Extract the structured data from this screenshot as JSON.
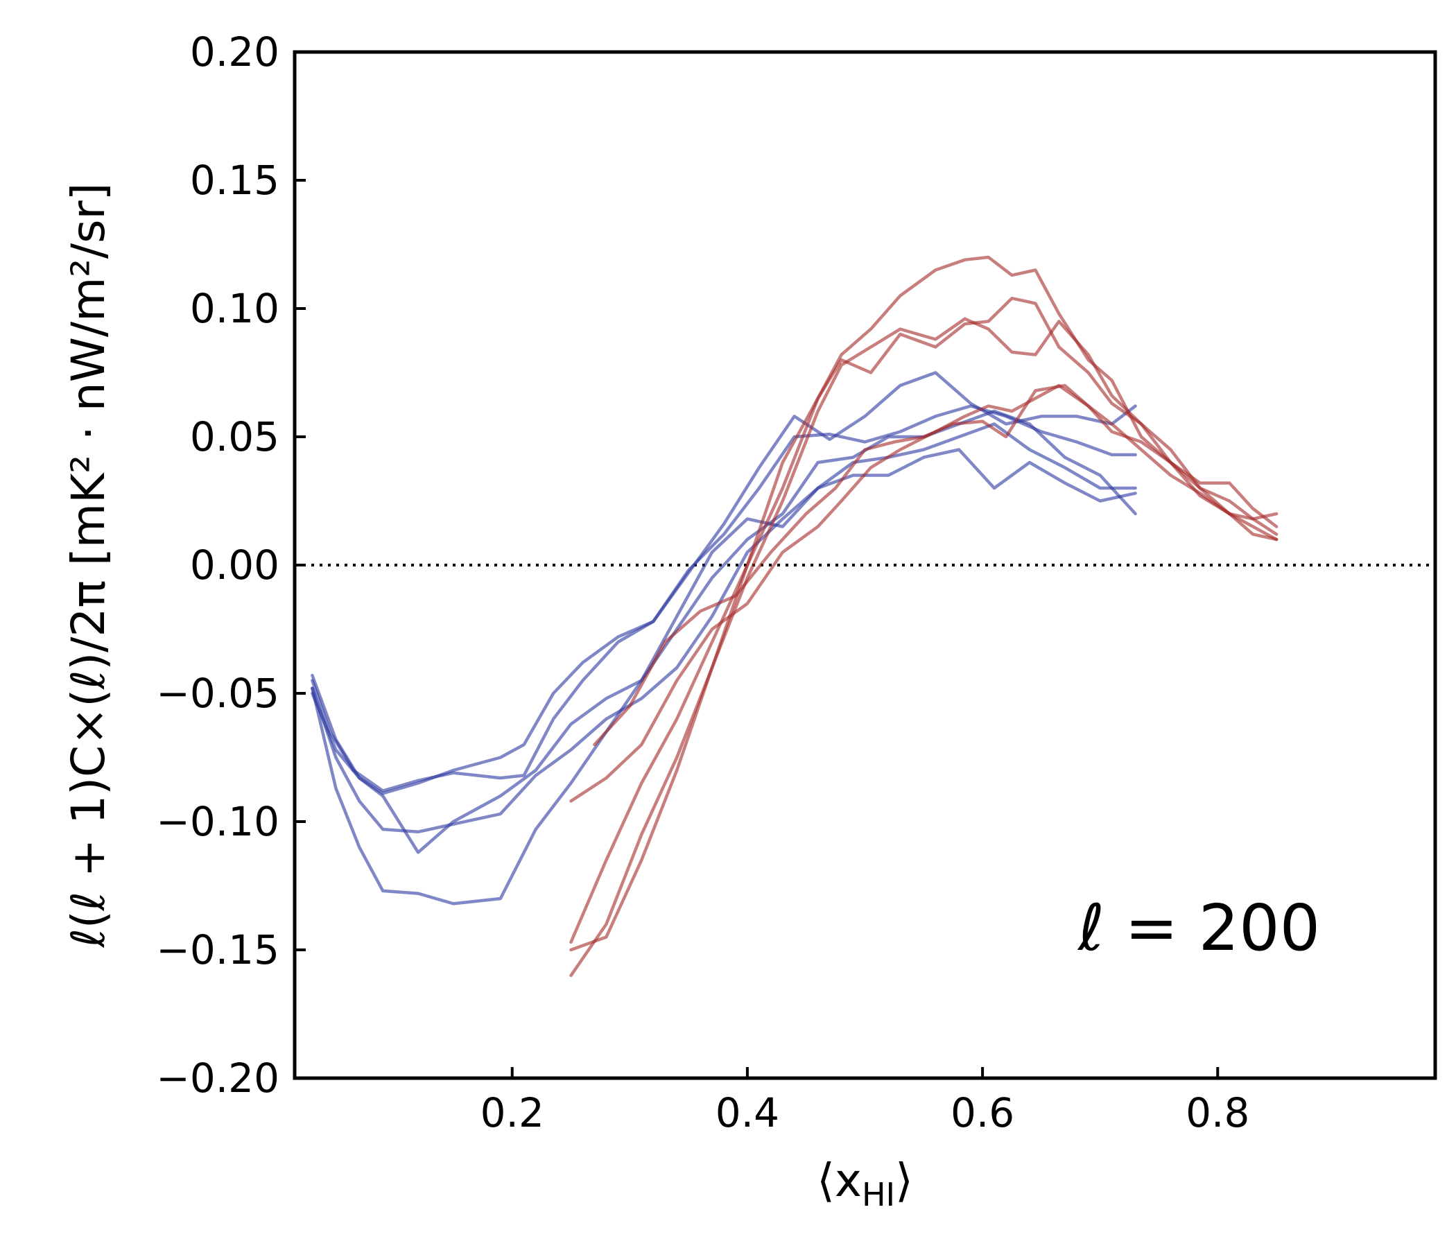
{
  "chart_data": {
    "type": "line",
    "xlabel_main": "⟨x",
    "xlabel_sub": "HI",
    "xlabel_end": "⟩",
    "ylabel": "ℓ(ℓ + 1)C×(ℓ)/2π [mK² · nW/m²/sr]",
    "xlim": [
      0.015,
      0.985
    ],
    "ylim": [
      -0.2,
      0.2
    ],
    "xticks": [
      0.2,
      0.4,
      0.6,
      0.8
    ],
    "xtick_labels": [
      "0.2",
      "0.4",
      "0.6",
      "0.8"
    ],
    "yticks": [
      -0.2,
      -0.15,
      -0.1,
      -0.05,
      0.0,
      0.05,
      0.1,
      0.15,
      0.2
    ],
    "ytick_labels": [
      "−0.20",
      "−0.15",
      "−0.10",
      "−0.05",
      "0.00",
      "0.05",
      "0.10",
      "0.15",
      "0.20"
    ],
    "reference_line": {
      "y": 0.0,
      "style": "dotted"
    },
    "annotation": "ℓ = 200",
    "colors": {
      "blue": "#2b37a0",
      "red": "#a52828"
    },
    "series": [
      {
        "name": "blue-1",
        "color": "blue",
        "x": [
          0.03,
          0.045,
          0.065,
          0.09,
          0.12,
          0.15,
          0.19,
          0.21,
          0.235,
          0.26,
          0.29,
          0.32,
          0.35,
          0.38,
          0.41,
          0.44,
          0.47,
          0.5,
          0.53,
          0.56,
          0.59,
          0.62,
          0.65,
          0.68,
          0.71,
          0.73
        ],
        "y": [
          -0.045,
          -0.065,
          -0.08,
          -0.088,
          -0.084,
          -0.081,
          -0.083,
          -0.082,
          -0.06,
          -0.045,
          -0.03,
          -0.022,
          -0.002,
          0.012,
          0.03,
          0.05,
          0.051,
          0.048,
          0.052,
          0.058,
          0.062,
          0.058,
          0.052,
          0.048,
          0.043,
          0.043
        ]
      },
      {
        "name": "blue-2",
        "color": "blue",
        "x": [
          0.03,
          0.05,
          0.07,
          0.09,
          0.12,
          0.15,
          0.19,
          0.21,
          0.235,
          0.26,
          0.29,
          0.32,
          0.35,
          0.38,
          0.41,
          0.44,
          0.47,
          0.5,
          0.53,
          0.56,
          0.59,
          0.62,
          0.65,
          0.68,
          0.71,
          0.73
        ],
        "y": [
          -0.05,
          -0.072,
          -0.083,
          -0.089,
          -0.085,
          -0.08,
          -0.075,
          -0.07,
          -0.05,
          -0.038,
          -0.028,
          -0.022,
          -0.003,
          0.016,
          0.038,
          0.058,
          0.049,
          0.058,
          0.07,
          0.075,
          0.063,
          0.055,
          0.058,
          0.058,
          0.055,
          0.062
        ]
      },
      {
        "name": "blue-3",
        "color": "blue",
        "x": [
          0.03,
          0.05,
          0.07,
          0.09,
          0.12,
          0.15,
          0.19,
          0.22,
          0.25,
          0.28,
          0.31,
          0.34,
          0.37,
          0.4,
          0.43,
          0.46,
          0.49,
          0.52,
          0.55,
          0.58,
          0.61,
          0.64,
          0.67,
          0.7,
          0.73
        ],
        "y": [
          -0.048,
          -0.075,
          -0.092,
          -0.103,
          -0.104,
          -0.101,
          -0.097,
          -0.082,
          -0.072,
          -0.06,
          -0.052,
          -0.04,
          -0.02,
          0.005,
          0.018,
          0.03,
          0.04,
          0.042,
          0.045,
          0.05,
          0.055,
          0.045,
          0.038,
          0.03,
          0.03
        ]
      },
      {
        "name": "blue-4",
        "color": "blue",
        "x": [
          0.03,
          0.05,
          0.07,
          0.09,
          0.12,
          0.15,
          0.19,
          0.22,
          0.25,
          0.28,
          0.31,
          0.34,
          0.37,
          0.4,
          0.43,
          0.46,
          0.49,
          0.52,
          0.55,
          0.58,
          0.61,
          0.64,
          0.67,
          0.7,
          0.73
        ],
        "y": [
          -0.043,
          -0.068,
          -0.083,
          -0.09,
          -0.112,
          -0.1,
          -0.09,
          -0.08,
          -0.062,
          -0.052,
          -0.045,
          -0.025,
          -0.005,
          0.01,
          0.02,
          0.04,
          0.042,
          0.05,
          0.05,
          0.055,
          0.06,
          0.055,
          0.042,
          0.035,
          0.02
        ]
      },
      {
        "name": "blue-5",
        "color": "blue",
        "x": [
          0.03,
          0.05,
          0.07,
          0.09,
          0.12,
          0.15,
          0.19,
          0.22,
          0.25,
          0.28,
          0.31,
          0.34,
          0.37,
          0.4,
          0.43,
          0.46,
          0.49,
          0.52,
          0.55,
          0.58,
          0.61,
          0.64,
          0.67,
          0.7,
          0.73
        ],
        "y": [
          -0.048,
          -0.087,
          -0.11,
          -0.127,
          -0.128,
          -0.132,
          -0.13,
          -0.103,
          -0.085,
          -0.065,
          -0.045,
          -0.02,
          0.005,
          0.018,
          0.015,
          0.03,
          0.035,
          0.035,
          0.042,
          0.045,
          0.03,
          0.04,
          0.032,
          0.025,
          0.028
        ]
      },
      {
        "name": "red-1",
        "color": "red",
        "x": [
          0.25,
          0.28,
          0.31,
          0.34,
          0.37,
          0.4,
          0.43,
          0.46,
          0.48,
          0.505,
          0.53,
          0.56,
          0.585,
          0.605,
          0.625,
          0.645,
          0.665,
          0.69,
          0.71,
          0.735,
          0.76,
          0.785,
          0.81,
          0.83,
          0.85
        ],
        "y": [
          -0.16,
          -0.14,
          -0.105,
          -0.075,
          -0.04,
          0.0,
          0.04,
          0.065,
          0.082,
          0.092,
          0.105,
          0.115,
          0.119,
          0.12,
          0.113,
          0.115,
          0.098,
          0.08,
          0.072,
          0.05,
          0.04,
          0.03,
          0.025,
          0.018,
          0.012
        ]
      },
      {
        "name": "red-2",
        "color": "red",
        "x": [
          0.25,
          0.28,
          0.31,
          0.34,
          0.37,
          0.4,
          0.43,
          0.46,
          0.48,
          0.505,
          0.53,
          0.56,
          0.585,
          0.605,
          0.625,
          0.645,
          0.665,
          0.69,
          0.71,
          0.735,
          0.76,
          0.785,
          0.81,
          0.83,
          0.85
        ],
        "y": [
          -0.147,
          -0.115,
          -0.085,
          -0.06,
          -0.03,
          0.0,
          0.03,
          0.065,
          0.08,
          0.075,
          0.09,
          0.085,
          0.094,
          0.095,
          0.104,
          0.102,
          0.085,
          0.075,
          0.063,
          0.055,
          0.045,
          0.03,
          0.02,
          0.018,
          0.02
        ]
      },
      {
        "name": "red-3",
        "color": "red",
        "x": [
          0.25,
          0.28,
          0.31,
          0.34,
          0.37,
          0.4,
          0.43,
          0.46,
          0.48,
          0.505,
          0.53,
          0.56,
          0.585,
          0.605,
          0.625,
          0.645,
          0.665,
          0.69,
          0.71,
          0.735,
          0.76,
          0.785,
          0.81,
          0.83,
          0.85
        ],
        "y": [
          -0.15,
          -0.145,
          -0.115,
          -0.08,
          -0.04,
          -0.005,
          0.025,
          0.06,
          0.078,
          0.085,
          0.092,
          0.088,
          0.096,
          0.092,
          0.083,
          0.082,
          0.095,
          0.082,
          0.066,
          0.055,
          0.04,
          0.027,
          0.02,
          0.012,
          0.01
        ]
      },
      {
        "name": "red-4",
        "color": "red",
        "x": [
          0.25,
          0.28,
          0.31,
          0.34,
          0.37,
          0.4,
          0.43,
          0.46,
          0.48,
          0.505,
          0.53,
          0.56,
          0.585,
          0.605,
          0.625,
          0.645,
          0.665,
          0.69,
          0.71,
          0.735,
          0.76,
          0.785,
          0.81,
          0.83,
          0.85
        ],
        "y": [
          -0.092,
          -0.083,
          -0.07,
          -0.045,
          -0.025,
          -0.015,
          0.005,
          0.015,
          0.025,
          0.038,
          0.045,
          0.052,
          0.058,
          0.062,
          0.06,
          0.065,
          0.07,
          0.062,
          0.055,
          0.045,
          0.035,
          0.028,
          0.02,
          0.015,
          0.01
        ]
      },
      {
        "name": "red-5",
        "color": "red",
        "x": [
          0.27,
          0.3,
          0.33,
          0.36,
          0.39,
          0.42,
          0.45,
          0.475,
          0.5,
          0.525,
          0.55,
          0.575,
          0.6,
          0.62,
          0.645,
          0.67,
          0.69,
          0.71,
          0.735,
          0.76,
          0.785,
          0.81,
          0.83,
          0.85
        ],
        "y": [
          -0.07,
          -0.055,
          -0.03,
          -0.018,
          -0.012,
          0.005,
          0.02,
          0.03,
          0.045,
          0.048,
          0.05,
          0.055,
          0.056,
          0.05,
          0.068,
          0.07,
          0.062,
          0.052,
          0.048,
          0.04,
          0.032,
          0.032,
          0.022,
          0.015
        ]
      }
    ]
  }
}
